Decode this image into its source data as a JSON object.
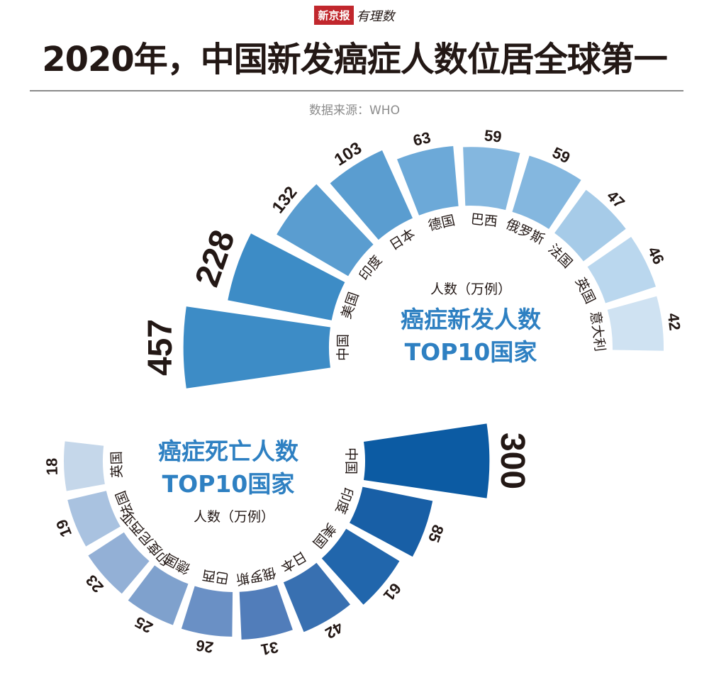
{
  "brand": {
    "name": "新京报",
    "sub": "有理数"
  },
  "title": "2020年，中国新发癌症人数位居全球第一",
  "source": "数据来源：WHO",
  "colors": {
    "new_cases": [
      "#3d8cc6",
      "#3d8cc6",
      "#5a9dd0",
      "#5a9dd0",
      "#6ca9d8",
      "#84b7df",
      "#84b7df",
      "#a6cbe8",
      "#bad7ee",
      "#cfe2f2"
    ],
    "deaths": [
      "#0c5ba3",
      "#185fa6",
      "#2166ac",
      "#3870b1",
      "#517dba",
      "#6a90c5",
      "#7fa1cd",
      "#93b0d6",
      "#a9c2e0",
      "#c5d7ea"
    ]
  },
  "chart_data": [
    {
      "type": "bar",
      "title": "癌症新发人数TOP10国家",
      "title_lines": [
        "癌症新发人数",
        "TOP10国家"
      ],
      "unit": "人数（万例）",
      "categories": [
        "中国",
        "美国",
        "印度",
        "日本",
        "德国",
        "巴西",
        "俄罗斯",
        "法国",
        "英国",
        "意大利"
      ],
      "values": [
        457,
        228,
        132,
        103,
        63,
        59,
        59,
        47,
        46,
        42
      ],
      "value_labels": [
        "457",
        "228",
        "132",
        "103",
        "63",
        "59",
        "59",
        "47",
        "46",
        "42"
      ]
    },
    {
      "type": "bar",
      "title": "癌症死亡人数TOP10国家",
      "title_lines": [
        "癌症死亡人数",
        "TOP10国家"
      ],
      "unit": "人数（万例）",
      "categories": [
        "中国",
        "印度",
        "美国",
        "日本",
        "俄罗斯",
        "巴西",
        "德国",
        "印度尼西亚",
        "法国",
        "英国"
      ],
      "values": [
        300,
        85,
        61,
        42,
        31,
        26,
        25,
        23,
        19,
        18
      ],
      "value_labels": [
        "300",
        "85",
        "61",
        "42",
        "31",
        "26",
        "25",
        "23",
        "19",
        "18"
      ]
    }
  ]
}
